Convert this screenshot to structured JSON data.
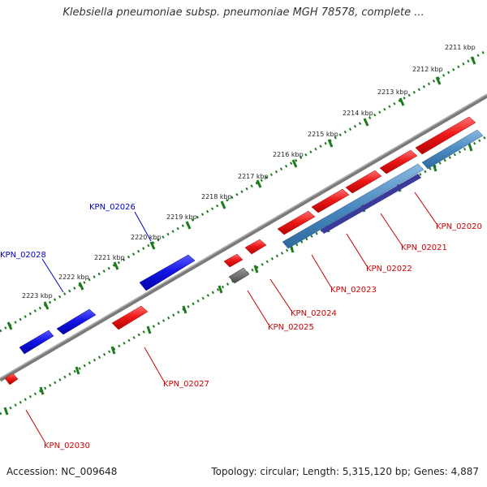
{
  "title": "Klebsiella pneumoniae subsp. pneumoniae MGH 78578, complete ...",
  "footer": {
    "accession": "Accession: NC_009648",
    "summary": "Topology: circular; Length: 5,315,120 bp; Genes: 4,887"
  },
  "colors": {
    "forward_gene": "#e8201c",
    "reverse_gene": "#1414e6",
    "pseudo_gene": "#666666",
    "cds_blue": "#4a8ac0",
    "cds_purple": "#3a3a9a",
    "forward_label": "#cc0000",
    "reverse_label": "#0000cc",
    "backbone": "#7a7a7a",
    "tick_green": "#1d7a1d"
  },
  "ruler_labels": [
    "2211 kbp",
    "2212 kbp",
    "2213 kbp",
    "2214 kbp",
    "2215 kbp",
    "2216 kbp",
    "2217 kbp",
    "2218 kbp",
    "2219 kbp",
    "2220 kbp",
    "2221 kbp",
    "2222 kbp",
    "2223 kbp"
  ],
  "gene_labels": {
    "kpn_02020": "KPN_02020",
    "kpn_02021": "KPN_02021",
    "kpn_02022": "KPN_02022",
    "kpn_02023": "KPN_02023",
    "kpn_02024": "KPN_02024",
    "kpn_02025": "KPN_02025",
    "kpn_02026": "KPN_02026",
    "kpn_02027": "KPN_02027",
    "kpn_02028": "KPN_02028",
    "kpn_02030": "KPN_02030"
  }
}
